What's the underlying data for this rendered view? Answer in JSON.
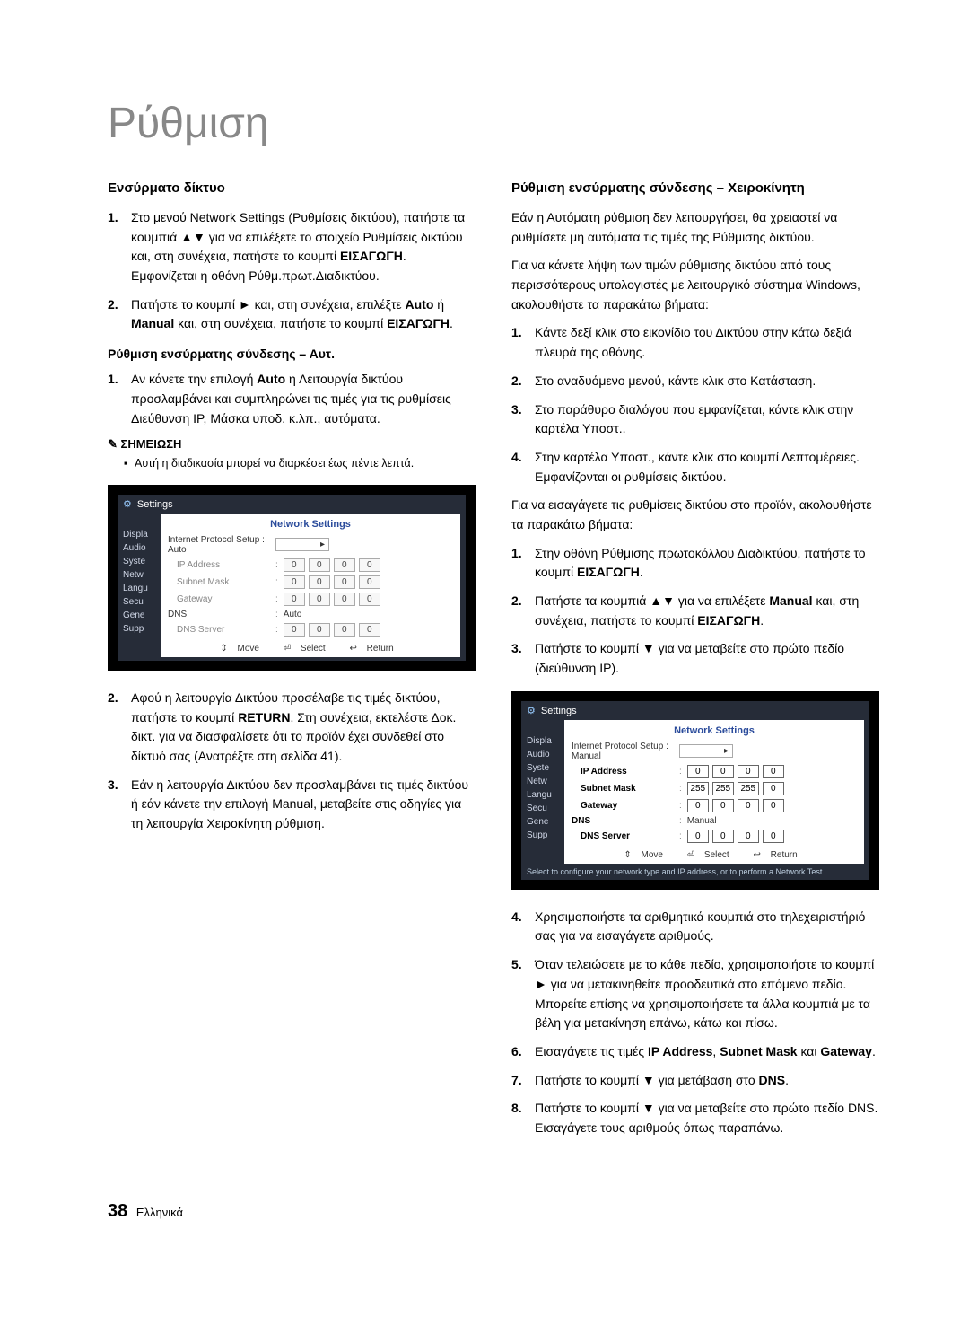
{
  "page": {
    "title": "Ρύθμιση",
    "pageNumber": "38",
    "lang": "Ελληνικά"
  },
  "left": {
    "heading": "Ενσύρματο δίκτυο",
    "l1_a": "Στο μενού Network Settings (Ρυθμίσεις δικτύου), πατήστε τα κουμπιά ▲▼ για να επιλέξετε το στοιχείο Ρυθμίσεις δικτύου και, στη συνέχεια, πατήστε το κουμπί ",
    "l1_b_bold": "ΕΙΣΑΓΩΓΗ",
    "l1_c": ". Εμφανίζεται η οθόνη Ρύθμ.πρωτ.Διαδικτύου.",
    "l2_a": "Πατήστε το κουμπί ► και, στη συνέχεια, επιλέξτε ",
    "l2_b_bold": "Auto",
    "l2_c": " ή ",
    "l2_d_bold": "Manual",
    "l2_e": " και, στη συνέχεια, πατήστε το κουμπί ",
    "l2_f_bold": "ΕΙΣΑΓΩΓΗ",
    "l2_g": ".",
    "sub1": "Ρύθμιση ενσύρματης σύνδεσης – Αυτ.",
    "s1_a": "Αν κάνετε την επιλογή ",
    "s1_b_bold": "Auto",
    "s1_c": " η Λειτουργία δικτύου προσλαμβάνει και συμπληρώνει τις τιμές για τις ρυθμίσεις Διεύθυνση IP, Μάσκα υποδ. κ.λπ., αυτόματα.",
    "note_head": "ΣΗΜΕΙΩΣΗ",
    "note_body": "Αυτή η διαδικασία μπορεί να διαρκέσει έως πέντε λεπτά.",
    "after1_a": "Αφού η λειτουργία Δικτύου προσέλαβε τις τιμές δικτύου, πατήστε το κουμπί ",
    "after1_b_bold": "RETURN",
    "after1_c": ". Στη συνέχεια, εκτελέστε Δοκ. δικτ. για να διασφαλίσετε ότι το προϊόν έχει συνδεθεί στο δίκτυό σας (Ανατρέξτε στη σελίδα 41).",
    "after2": "Εάν η λειτουργία Δικτύου δεν προσλαμβάνει τις τιμές δικτύου ή εάν κάνετε την επιλογή Manual, μεταβείτε στις οδηγίες για τη λειτουργία Χειροκίνητη ρύθμιση."
  },
  "right": {
    "heading": "Ρύθμιση ενσύρματης σύνδεσης – Χειροκίνητη",
    "p1": "Εάν η Αυτόματη ρύθμιση δεν λειτουργήσει, θα χρειαστεί να ρυθμίσετε μη αυτόματα τις τιμές της Ρύθμισης δικτύου.",
    "p2": "Για να κάνετε λήψη των τιμών ρύθμισης δικτύου από τους περισσότερους υπολογιστές με λειτουργικό σύστημα Windows, ακολουθήστε τα παρακάτω βήματα:",
    "a1": "Κάντε δεξί κλικ στο εικονίδιο του Δικτύου στην κάτω δεξιά πλευρά της οθόνης.",
    "a2": "Στο αναδυόμενο μενού, κάντε κλικ στο Κατάσταση.",
    "a3": "Στο παράθυρο διαλόγου που εμφανίζεται, κάντε κλικ στην καρτέλα Υποστ..",
    "a4": "Στην καρτέλα Υποστ., κάντε κλικ στο κουμπί Λεπτομέρειες. Εμφανίζονται οι ρυθμίσεις δικτύου.",
    "p3": "Για να εισαγάγετε τις ρυθμίσεις δικτύου στο προϊόν, ακολουθήστε τα παρακάτω βήματα:",
    "b1_a": "Στην οθόνη Ρύθμισης πρωτοκόλλου Διαδικτύου, πατήστε το κουμπί ",
    "b1_b_bold": "ΕΙΣΑΓΩΓΗ",
    "b1_c": ".",
    "b2_a": "Πατήστε τα κουμπιά ▲▼ για να επιλέξετε ",
    "b2_b_bold": "Manual",
    "b2_c": " και, στη συνέχεια, πατήστε το κουμπί ",
    "b2_d_bold": "ΕΙΣΑΓΩΓΗ",
    "b2_e": ".",
    "b3": "Πατήστε το κουμπί ▼ για να μεταβείτε στο πρώτο πεδίο (διεύθυνση IP).",
    "c4": "Χρησιμοποιήστε τα αριθμητικά κουμπιά στο τηλεχειριστήριό σας για να εισαγάγετε αριθμούς.",
    "c5": "Όταν τελειώσετε με το κάθε πεδίο, χρησιμοποιήστε το κουμπί ► για να μετακινηθείτε προοδευτικά στο επόμενο πεδίο. Μπορείτε επίσης να χρησιμοποιήσετε τα άλλα κουμπιά με τα βέλη για μετακίνηση επάνω, κάτω και πίσω.",
    "c6_a": "Εισαγάγετε τις τιμές ",
    "c6_b_bold": "IP Address",
    "c6_c": ", ",
    "c6_d_bold": "Subnet Mask",
    "c6_e": " και ",
    "c6_f_bold": "Gateway",
    "c6_g": ".",
    "c7_a": "Πατήστε το κουμπί ▼ για μετάβαση στο ",
    "c7_b_bold": "DNS",
    "c7_c": ".",
    "c8": "Πατήστε το κουμπί ▼ για να μεταβείτε στο πρώτο πεδίο DNS. Εισαγάγετε τους αριθμούς όπως παραπάνω."
  },
  "shot": {
    "settings": "Settings",
    "title": "Network Settings",
    "sidebar": [
      "Displa",
      "Audio",
      "Syste",
      "Netw",
      "Langu",
      "Secu",
      "Gene",
      "Supp"
    ],
    "row_setup": "Internet Protocol Setup",
    "mode_auto": "Auto",
    "mode_manual": "Manual",
    "ip": "IP Address",
    "mask": "Subnet Mask",
    "gw": "Gateway",
    "dns": "DNS",
    "dnssrv": "DNS Server",
    "auto_vals": {
      "ip": [
        "0",
        "0",
        "0",
        "0"
      ],
      "mask": [
        "0",
        "0",
        "0",
        "0"
      ],
      "gw": [
        "0",
        "0",
        "0",
        "0"
      ],
      "dnssrv": [
        "0",
        "0",
        "0",
        "0"
      ]
    },
    "manual_vals": {
      "ip": [
        "0",
        "0",
        "0",
        "0"
      ],
      "mask": [
        "255",
        "255",
        "255",
        "0"
      ],
      "gw": [
        "0",
        "0",
        "0",
        "0"
      ],
      "dnssrv": [
        "0",
        "0",
        "0",
        "0"
      ]
    },
    "move": "Move",
    "select": "Select",
    "return": "Return",
    "subtext": "Select to configure your network type and IP address, or to perform a Network Test."
  }
}
